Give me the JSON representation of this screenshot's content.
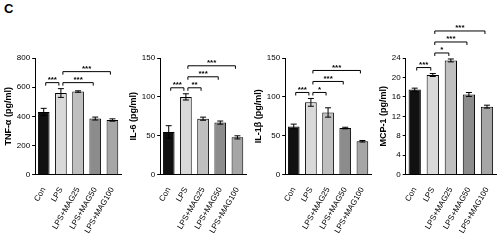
{
  "panel_label": "C",
  "chart_data": [
    {
      "type": "bar",
      "y_label": "TNF-α (pg/ml)",
      "categories": [
        "Con",
        "LPS",
        "LPS+MAG25",
        "LPS+MAG50",
        "LPS+MAG100"
      ],
      "values": [
        430,
        560,
        570,
        385,
        375
      ],
      "errors": [
        25,
        30,
        5,
        10,
        8
      ],
      "colors": [
        "#111111",
        "#d9d9d9",
        "#bfbfbf",
        "#8c8c8c",
        "#a6a6a6"
      ],
      "ylim": [
        0,
        800
      ],
      "yticks": [
        0,
        200,
        400,
        600,
        800
      ],
      "grid": false,
      "comparisons": [
        {
          "pair": [
            "Con",
            "LPS"
          ],
          "label": "***"
        },
        {
          "pair": [
            "LPS",
            "LPS+MAG50"
          ],
          "label": "***"
        },
        {
          "pair": [
            "LPS",
            "LPS+MAG100"
          ],
          "label": "***"
        }
      ]
    },
    {
      "type": "bar",
      "y_label": "IL-6 (pg/ml)",
      "categories": [
        "Con",
        "LPS",
        "LPS+MAG25",
        "LPS+MAG50",
        "LPS+MAG100"
      ],
      "values": [
        55,
        100,
        72,
        67,
        48
      ],
      "errors": [
        8,
        4,
        2,
        2,
        2
      ],
      "colors": [
        "#111111",
        "#d9d9d9",
        "#bfbfbf",
        "#8c8c8c",
        "#a6a6a6"
      ],
      "ylim": [
        0,
        150
      ],
      "yticks": [
        0,
        50,
        100,
        150
      ],
      "grid": false,
      "comparisons": [
        {
          "pair": [
            "Con",
            "LPS"
          ],
          "label": "***"
        },
        {
          "pair": [
            "LPS",
            "LPS+MAG25"
          ],
          "label": "**"
        },
        {
          "pair": [
            "LPS",
            "LPS+MAG50"
          ],
          "label": "***"
        },
        {
          "pair": [
            "LPS",
            "LPS+MAG100"
          ],
          "label": "***"
        }
      ]
    },
    {
      "type": "bar",
      "y_label": "IL-1β (pg/ml)",
      "categories": [
        "Con",
        "LPS",
        "LPS+MAG25",
        "LPS+MAG50",
        "LPS+MAG100"
      ],
      "values": [
        62,
        93,
        80,
        60,
        43
      ],
      "errors": [
        3,
        5,
        6,
        1,
        1
      ],
      "colors": [
        "#111111",
        "#d9d9d9",
        "#bfbfbf",
        "#8c8c8c",
        "#a6a6a6"
      ],
      "ylim": [
        0,
        150
      ],
      "yticks": [
        0,
        50,
        100,
        150
      ],
      "grid": false,
      "comparisons": [
        {
          "pair": [
            "Con",
            "LPS"
          ],
          "label": "***"
        },
        {
          "pair": [
            "LPS",
            "LPS+MAG25"
          ],
          "label": "*"
        },
        {
          "pair": [
            "LPS",
            "LPS+MAG50"
          ],
          "label": "***"
        },
        {
          "pair": [
            "LPS",
            "LPS+MAG100"
          ],
          "label": "***"
        }
      ]
    },
    {
      "type": "bar",
      "y_label": "MCP-1 (pg/ml)",
      "categories": [
        "Con",
        "LPS",
        "LPS+MAG25",
        "LPS+MAG50",
        "LPS+MAG100"
      ],
      "values": [
        17.5,
        20.5,
        23.5,
        16.5,
        14
      ],
      "errors": [
        0.3,
        0.3,
        0.3,
        0.4,
        0.3
      ],
      "colors": [
        "#111111",
        "#d9d9d9",
        "#bfbfbf",
        "#8c8c8c",
        "#a6a6a6"
      ],
      "ylim": [
        0,
        24
      ],
      "yticks": [
        0,
        4,
        8,
        12,
        16,
        20,
        24
      ],
      "grid": false,
      "comparisons": [
        {
          "pair": [
            "Con",
            "LPS"
          ],
          "label": "***"
        },
        {
          "pair": [
            "LPS",
            "LPS+MAG25"
          ],
          "label": "*"
        },
        {
          "pair": [
            "LPS",
            "LPS+MAG50"
          ],
          "label": "***"
        },
        {
          "pair": [
            "LPS",
            "LPS+MAG100"
          ],
          "label": "***"
        }
      ]
    }
  ]
}
